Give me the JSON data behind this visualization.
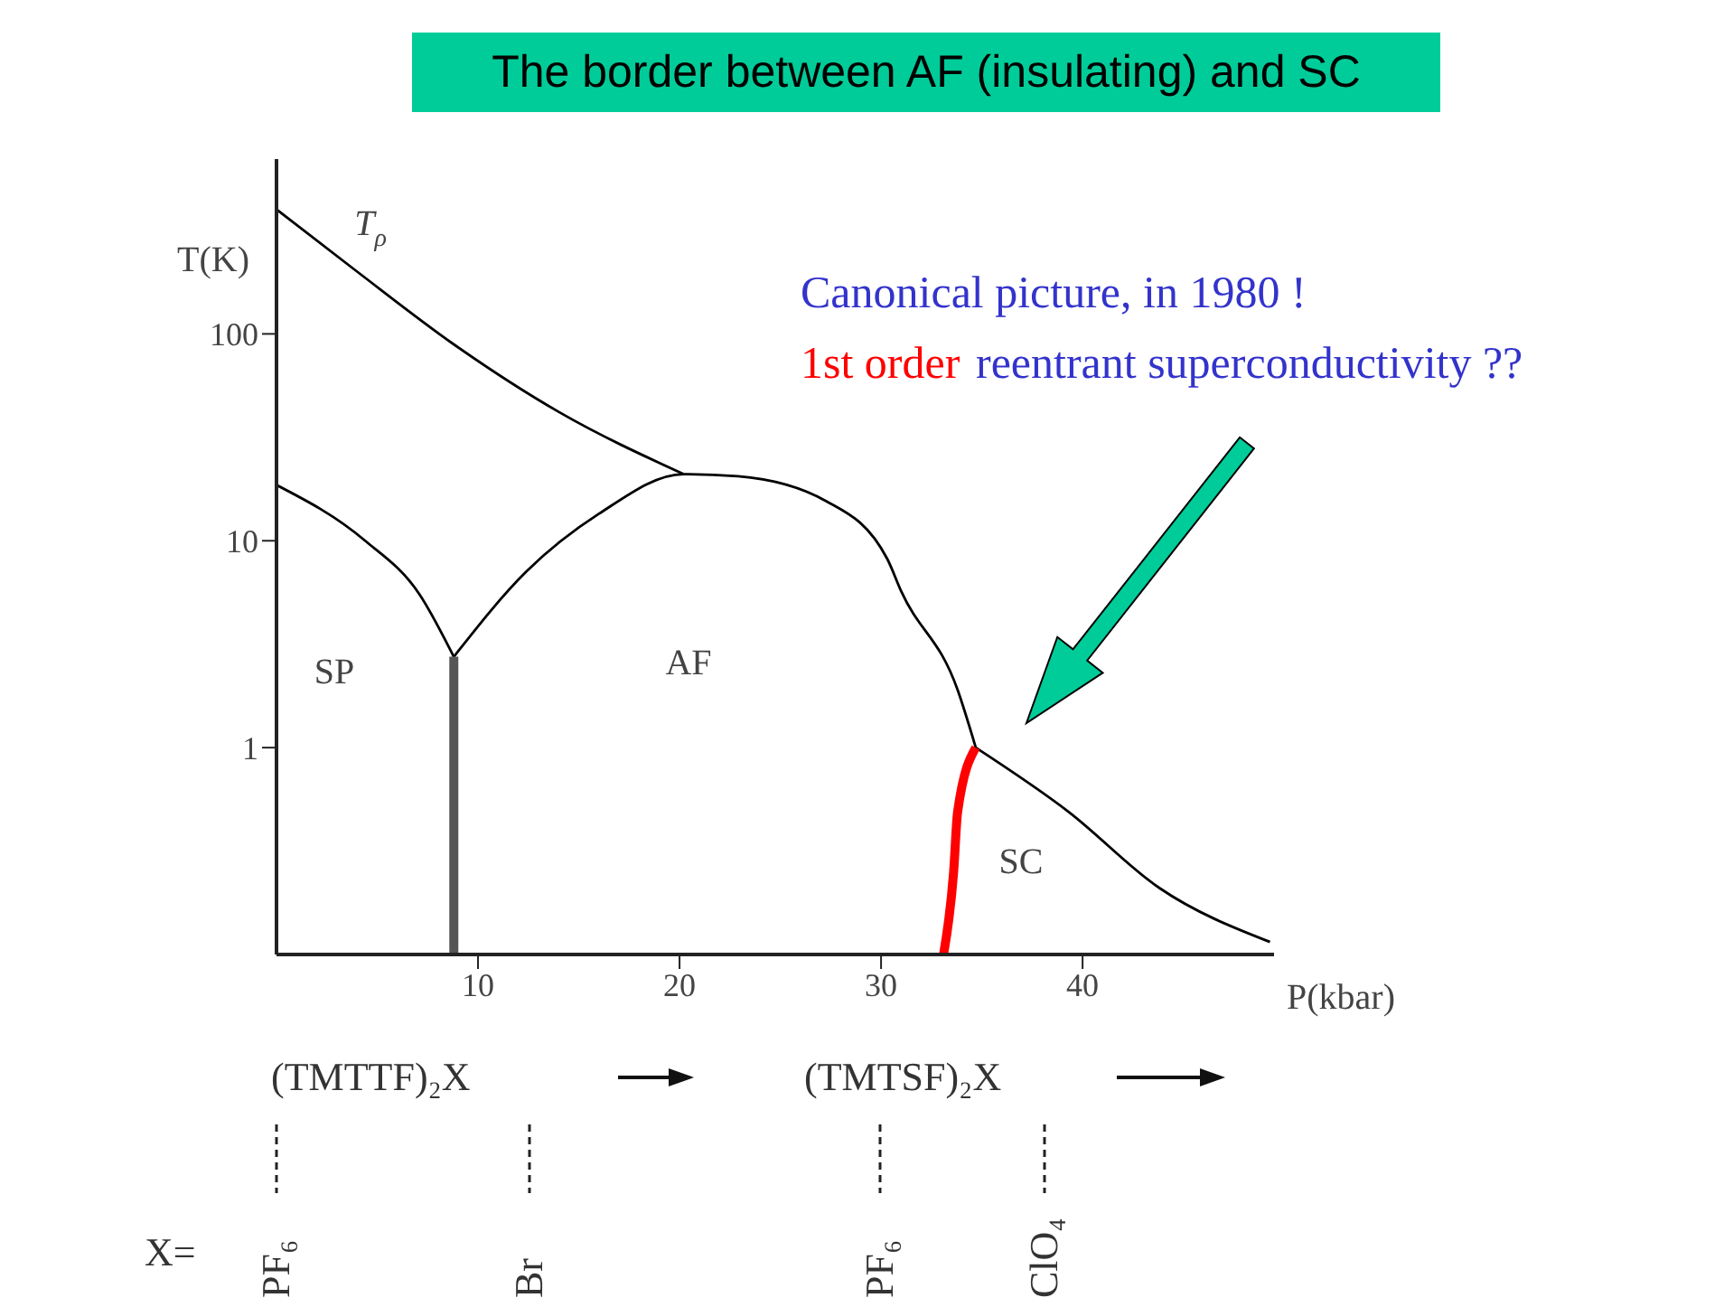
{
  "chart_data": {
    "type": "line",
    "title": "The border between AF (insulating) and SC",
    "xlabel": "P(kbar)",
    "ylabel": "T(K)",
    "xlim": [
      0,
      49.5
    ],
    "xticks": [
      10,
      20,
      30,
      40
    ],
    "ylim": [
      0.1,
      700
    ],
    "yticks": [
      1,
      10,
      100
    ],
    "log": "y",
    "marker": "none",
    "line_style": "solid",
    "series": [
      {
        "color": "#000000",
        "x": [
          0,
          4,
          8.8,
          14,
          20.2
        ],
        "values": [
          400,
          200,
          89,
          42,
          21
        ]
      },
      {
        "color": "#000000",
        "x": [
          0,
          4.4,
          7.1,
          8.8
        ],
        "values": [
          18.6,
          10,
          5.5,
          2.75
        ]
      },
      {
        "color": "#000000",
        "x": [
          8.8,
          12.4,
          16,
          20.2,
          22.9,
          27.3,
          30.3,
          31,
          33.8,
          34.7
        ],
        "values": [
          2.75,
          7.1,
          13.5,
          21,
          20.5,
          15.5,
          8.2,
          5.7,
          1.9,
          1
        ]
      },
      {
        "color": "#000000",
        "x": [
          34.7,
          39.3,
          43.8,
          49.3
        ],
        "values": [
          1,
          0.49,
          0.21,
          0.115
        ]
      },
      {
        "color": "#555555",
        "x": [
          8.8,
          8.8
        ],
        "values": [
          0.1,
          2.75
        ]
      },
      {
        "color": "#ff0000",
        "x": [
          33.1,
          33.6,
          33.8,
          34.7
        ],
        "values": [
          0.1,
          0.25,
          0.49,
          1
        ]
      }
    ],
    "annotations": [
      "Canonical picture, in 1980 !",
      "1st order",
      "reentrant superconductivity ??",
      "T$_{ρ}$",
      "SP",
      "AF",
      "SC",
      "(TMTTF)₂X",
      "(TMTSF)₂X",
      "X=",
      "PF₆",
      "Br",
      "PF₆",
      "ClO₄"
    ]
  }
}
